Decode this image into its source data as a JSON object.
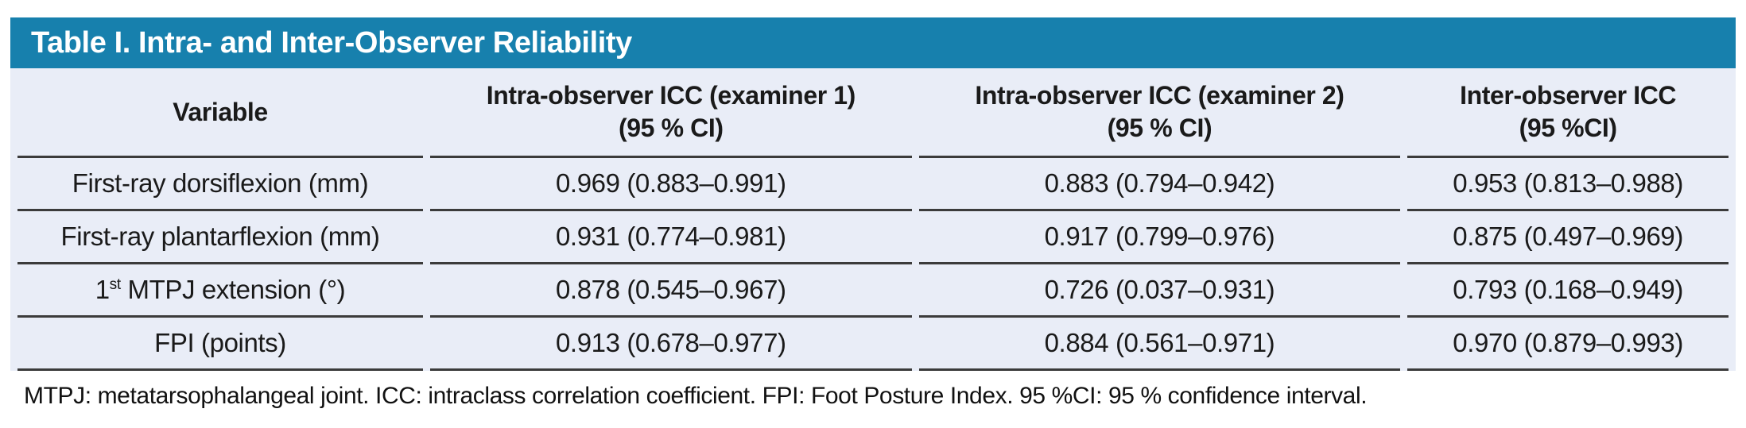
{
  "colors": {
    "accent": "#1780AD",
    "table_background": "#E9EDF7",
    "rule": "#3b3b3b",
    "title_text": "#ffffff"
  },
  "title": "Table I. Intra- and Inter-Observer Reliability",
  "table": {
    "headers": [
      {
        "line1": "Variable",
        "line2": ""
      },
      {
        "line1": "Intra-observer ICC (examiner 1)",
        "line2": "(95 % CI)"
      },
      {
        "line1": "Intra-observer ICC (examiner 2)",
        "line2": "(95 % CI)"
      },
      {
        "line1": "Inter-observer ICC",
        "line2": "(95 %CI)"
      }
    ],
    "rows": [
      {
        "variable": "First-ray dorsiflexion (mm)",
        "values": [
          "0.969 (0.883–0.991)",
          "0.883 (0.794–0.942)",
          "0.953 (0.813–0.988)"
        ]
      },
      {
        "variable": "First-ray plantarflexion (mm)",
        "values": [
          "0.931 (0.774–0.981)",
          "0.917 (0.799–0.976)",
          "0.875 (0.497–0.969)"
        ]
      },
      {
        "variable_num": "1",
        "variable_sup": "st",
        "variable_rest": " MTPJ extension (°)",
        "values": [
          "0.878 (0.545–0.967)",
          "0.726 (0.037–0.931)",
          "0.793 (0.168–0.949)"
        ]
      },
      {
        "variable": "FPI (points)",
        "values": [
          "0.913 (0.678–0.977)",
          "0.884 (0.561–0.971)",
          "0.970 (0.879–0.993)"
        ]
      }
    ]
  },
  "footnote": "MTPJ: metatarsophalangeal joint. ICC: intraclass correlation coefficient. FPI: Foot Posture Index. 95 %CI: 95 % confidence interval."
}
